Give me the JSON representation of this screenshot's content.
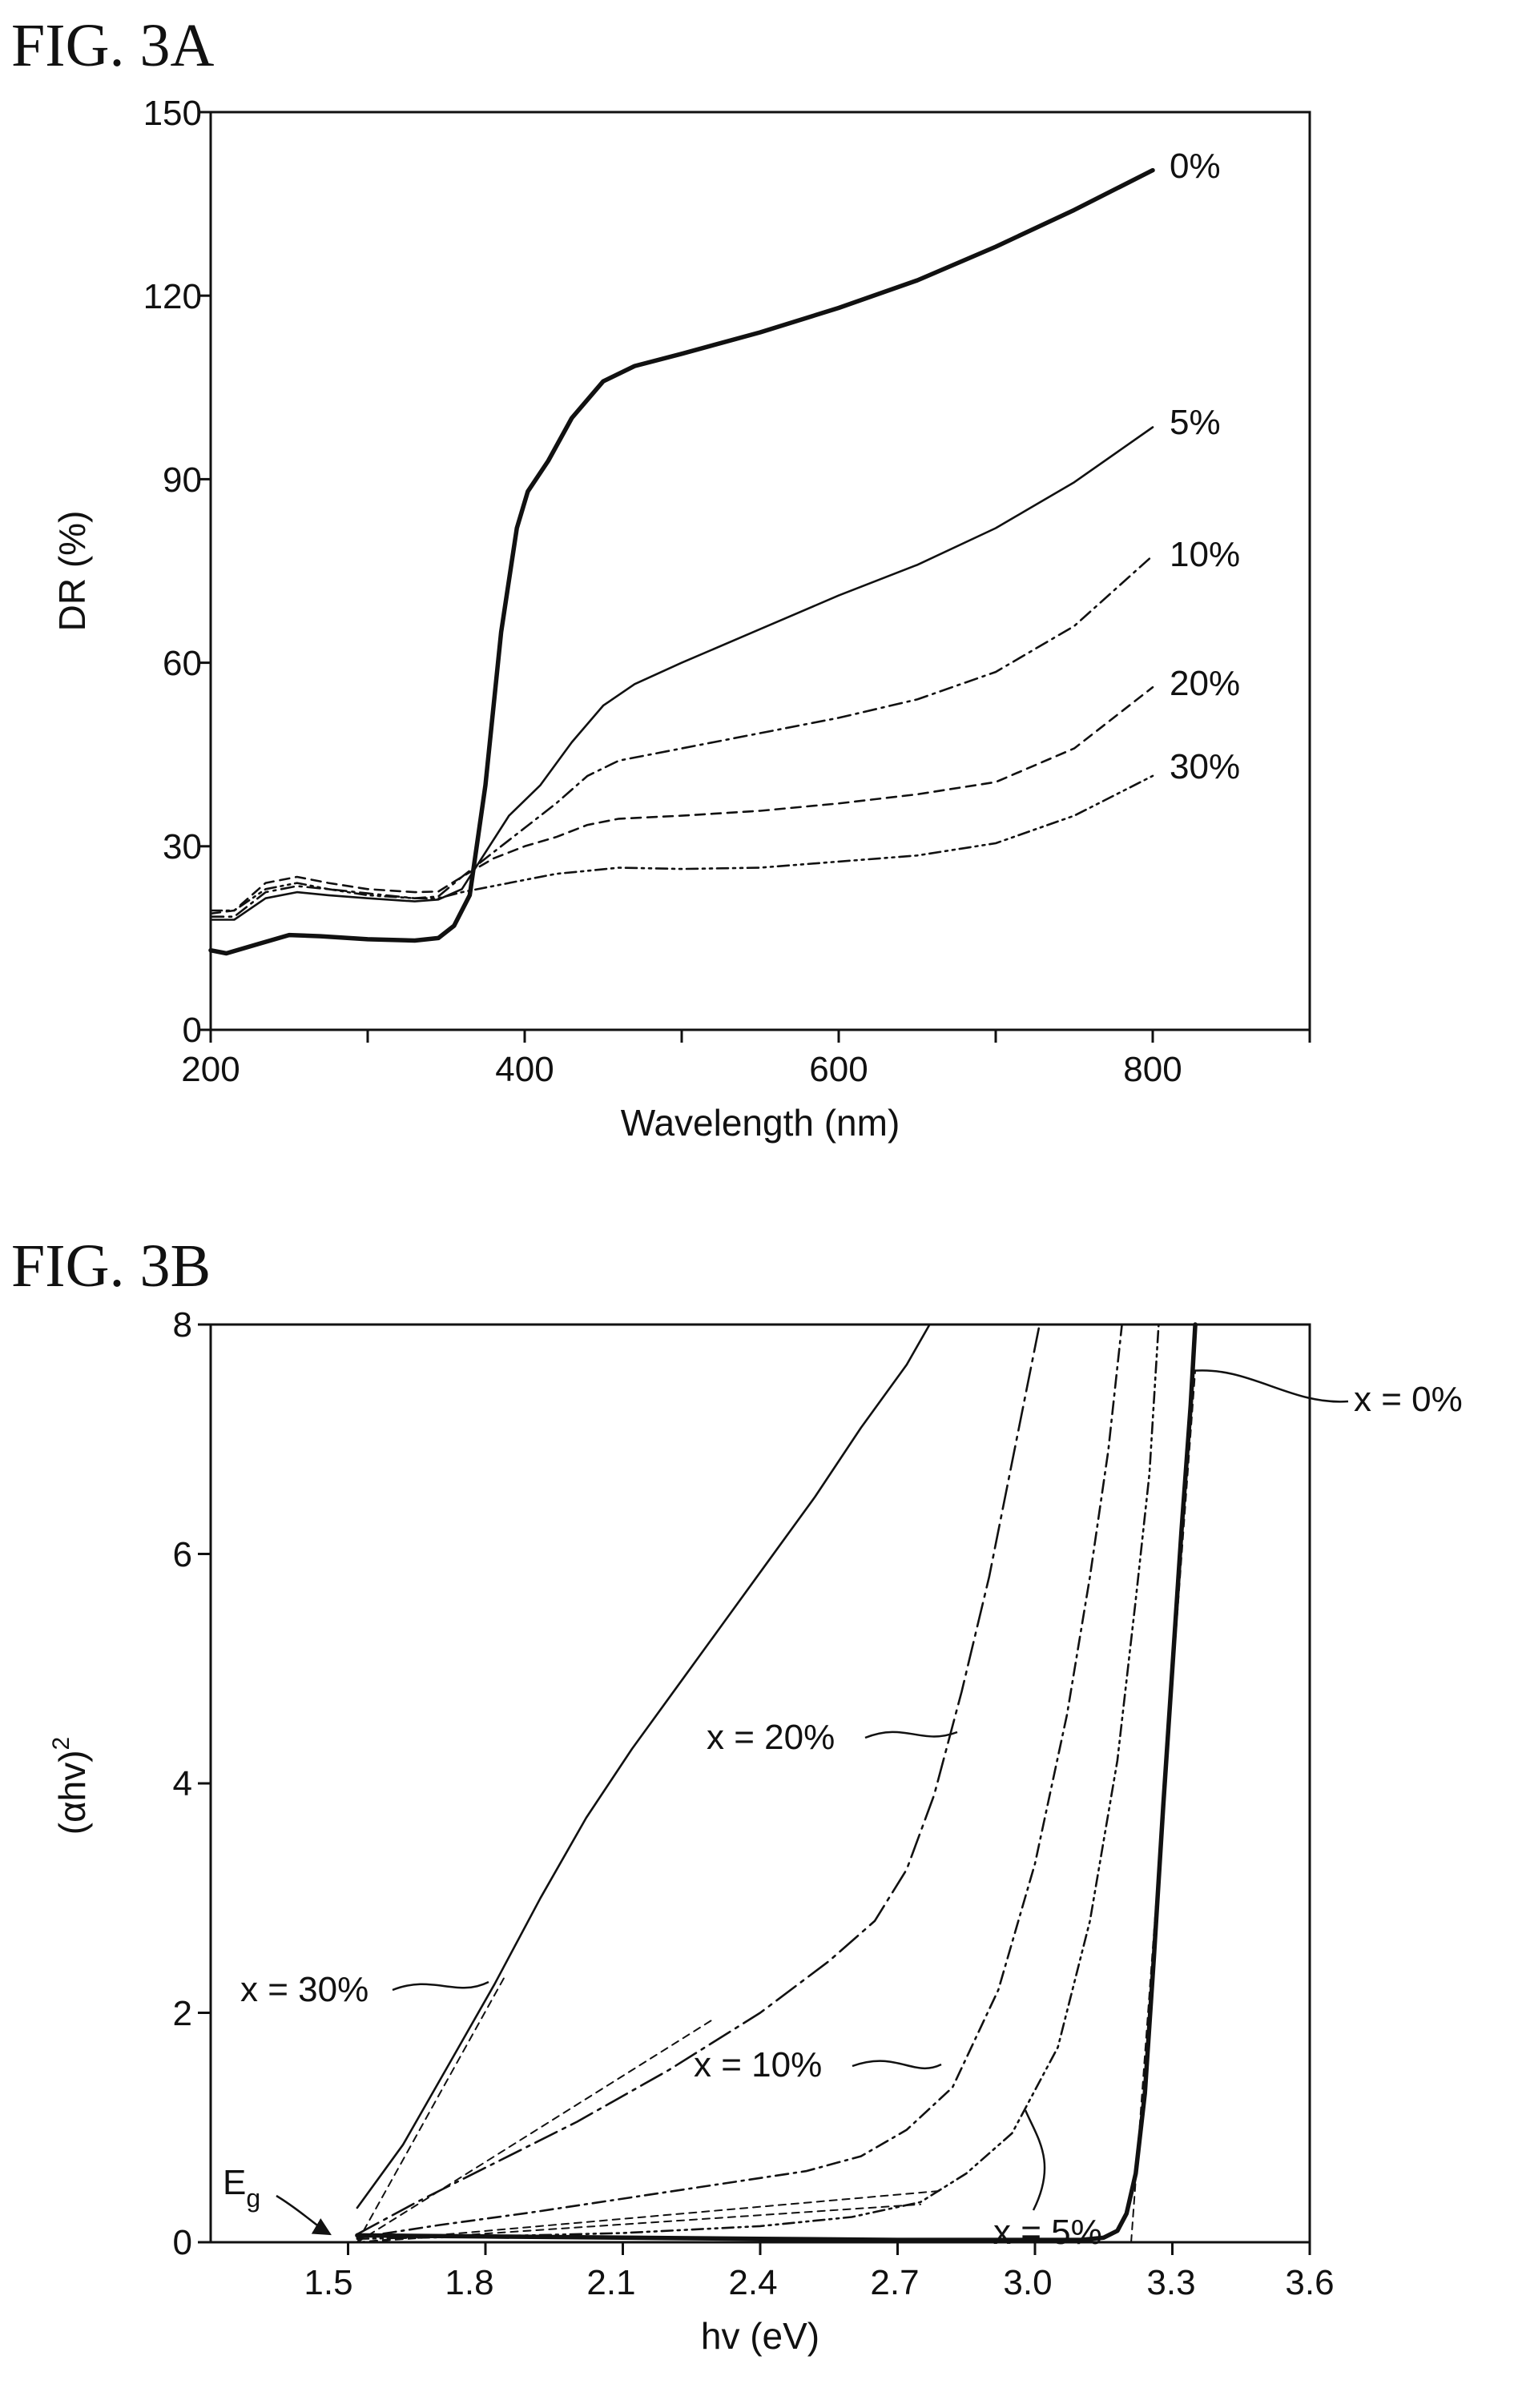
{
  "chart_data": [
    {
      "title": "FIG. 3A",
      "type": "line",
      "xlabel": "Wavelength (nm)",
      "ylabel": "DR (%)",
      "xlim": [
        200,
        900
      ],
      "ylim": [
        0,
        150
      ],
      "xticks": [
        200,
        400,
        600,
        800
      ],
      "yticks": [
        0,
        30,
        60,
        90,
        120,
        150
      ],
      "grid": false,
      "series": [
        {
          "name": "0%",
          "style": "solid-thick",
          "points": [
            [
              200,
              13
            ],
            [
              210,
              12.5
            ],
            [
              230,
              14
            ],
            [
              250,
              15.5
            ],
            [
              270,
              15.3
            ],
            [
              300,
              14.8
            ],
            [
              330,
              14.6
            ],
            [
              345,
              15
            ],
            [
              355,
              17
            ],
            [
              365,
              22
            ],
            [
              375,
              40
            ],
            [
              385,
              65
            ],
            [
              395,
              82
            ],
            [
              402,
              88
            ],
            [
              415,
              93
            ],
            [
              430,
              100
            ],
            [
              450,
              106
            ],
            [
              470,
              108.5
            ],
            [
              500,
              110.5
            ],
            [
              550,
              114
            ],
            [
              600,
              118
            ],
            [
              650,
              122.5
            ],
            [
              700,
              128
            ],
            [
              750,
              134
            ],
            [
              800,
              140.5
            ]
          ]
        },
        {
          "name": "5%",
          "style": "solid",
          "points": [
            [
              200,
              18
            ],
            [
              215,
              18
            ],
            [
              235,
              21.5
            ],
            [
              255,
              22.5
            ],
            [
              275,
              22
            ],
            [
              300,
              21.5
            ],
            [
              330,
              21
            ],
            [
              345,
              21.3
            ],
            [
              360,
              23
            ],
            [
              375,
              29
            ],
            [
              390,
              35
            ],
            [
              410,
              40
            ],
            [
              430,
              47
            ],
            [
              450,
              53
            ],
            [
              470,
              56.5
            ],
            [
              500,
              60
            ],
            [
              550,
              65.5
            ],
            [
              600,
              71
            ],
            [
              650,
              76
            ],
            [
              700,
              82
            ],
            [
              750,
              89.5
            ],
            [
              800,
              98.5
            ]
          ]
        },
        {
          "name": "10%",
          "style": "dash-dot",
          "points": [
            [
              200,
              18.5
            ],
            [
              215,
              18.5
            ],
            [
              235,
              22.5
            ],
            [
              255,
              23.5
            ],
            [
              275,
              23
            ],
            [
              300,
              22.3
            ],
            [
              330,
              21.5
            ],
            [
              345,
              21.8
            ],
            [
              360,
              25
            ],
            [
              380,
              29
            ],
            [
              400,
              33
            ],
            [
              420,
              37
            ],
            [
              440,
              41.5
            ],
            [
              460,
              44
            ],
            [
              500,
              46
            ],
            [
              550,
              48.5
            ],
            [
              600,
              51
            ],
            [
              650,
              54
            ],
            [
              700,
              58.5
            ],
            [
              750,
              66
            ],
            [
              800,
              77.5
            ]
          ]
        },
        {
          "name": "20%",
          "style": "dashed",
          "points": [
            [
              200,
              19
            ],
            [
              215,
              19.5
            ],
            [
              235,
              24
            ],
            [
              255,
              25
            ],
            [
              275,
              24
            ],
            [
              300,
              23
            ],
            [
              330,
              22.5
            ],
            [
              345,
              22.6
            ],
            [
              360,
              25
            ],
            [
              380,
              28
            ],
            [
              400,
              30
            ],
            [
              420,
              31.5
            ],
            [
              440,
              33.5
            ],
            [
              460,
              34.5
            ],
            [
              500,
              35
            ],
            [
              550,
              35.8
            ],
            [
              600,
              37
            ],
            [
              650,
              38.5
            ],
            [
              700,
              40.5
            ],
            [
              750,
              46
            ],
            [
              800,
              56
            ]
          ]
        },
        {
          "name": "30%",
          "style": "dash-dot-dot",
          "points": [
            [
              200,
              19.5
            ],
            [
              215,
              19.5
            ],
            [
              235,
              23
            ],
            [
              255,
              24
            ],
            [
              275,
              23
            ],
            [
              300,
              22
            ],
            [
              330,
              21.5
            ],
            [
              345,
              21.5
            ],
            [
              360,
              22.5
            ],
            [
              380,
              23.5
            ],
            [
              400,
              24.5
            ],
            [
              420,
              25.5
            ],
            [
              440,
              26
            ],
            [
              460,
              26.5
            ],
            [
              500,
              26.3
            ],
            [
              550,
              26.5
            ],
            [
              600,
              27.5
            ],
            [
              650,
              28.5
            ],
            [
              700,
              30.5
            ],
            [
              750,
              35
            ],
            [
              800,
              41.5
            ]
          ]
        }
      ],
      "labels": [
        "0%",
        "5%",
        "10%",
        "20%",
        "30%"
      ]
    },
    {
      "title": "FIG. 3B",
      "type": "line",
      "xlabel": "hv (eV)",
      "ylabel_main": "(αhv)",
      "ylabel_sup": "2",
      "xlim": [
        1.2,
        3.6
      ],
      "ylim": [
        0,
        8
      ],
      "xticks": [
        "1.5",
        "1.8",
        "2.1",
        "2.4",
        "2.7",
        "3.0",
        "3.3",
        "3.6"
      ],
      "yticks": [
        0,
        2,
        4,
        6,
        8
      ],
      "grid": false,
      "series": [
        {
          "name": "x = 0%",
          "style": "solid-thick",
          "points": [
            [
              1.52,
              0.06
            ],
            [
              1.8,
              0.05
            ],
            [
              2.1,
              0.04
            ],
            [
              2.4,
              0.03
            ],
            [
              2.7,
              0.02
            ],
            [
              3.0,
              0.02
            ],
            [
              3.1,
              0.02
            ],
            [
              3.15,
              0.04
            ],
            [
              3.18,
              0.1
            ],
            [
              3.2,
              0.25
            ],
            [
              3.22,
              0.6
            ],
            [
              3.24,
              1.3
            ],
            [
              3.26,
              2.5
            ],
            [
              3.28,
              3.8
            ],
            [
              3.3,
              5.0
            ],
            [
              3.32,
              6.2
            ],
            [
              3.34,
              7.3
            ],
            [
              3.35,
              8.0
            ]
          ]
        },
        {
          "name": "x = 5%",
          "style": "dash-dot-dot",
          "points": [
            [
              1.52,
              0.03
            ],
            [
              1.8,
              0.05
            ],
            [
              2.1,
              0.08
            ],
            [
              2.4,
              0.14
            ],
            [
              2.6,
              0.22
            ],
            [
              2.75,
              0.35
            ],
            [
              2.85,
              0.6
            ],
            [
              2.95,
              0.95
            ],
            [
              3.05,
              1.7
            ],
            [
              3.12,
              2.8
            ],
            [
              3.18,
              4.2
            ],
            [
              3.22,
              5.6
            ],
            [
              3.25,
              6.7
            ],
            [
              3.27,
              8.0
            ]
          ]
        },
        {
          "name": "x = 10%",
          "style": "dash-dot",
          "points": [
            [
              1.52,
              0.04
            ],
            [
              1.7,
              0.15
            ],
            [
              1.9,
              0.26
            ],
            [
              2.1,
              0.38
            ],
            [
              2.3,
              0.5
            ],
            [
              2.5,
              0.62
            ],
            [
              2.62,
              0.75
            ],
            [
              2.72,
              0.98
            ],
            [
              2.82,
              1.35
            ],
            [
              2.92,
              2.2
            ],
            [
              3.0,
              3.3
            ],
            [
              3.07,
              4.6
            ],
            [
              3.12,
              5.8
            ],
            [
              3.16,
              6.9
            ],
            [
              3.19,
              8.0
            ]
          ]
        },
        {
          "name": "x = 20%",
          "style": "long-dash-dot",
          "points": [
            [
              1.52,
              0.07
            ],
            [
              1.65,
              0.35
            ],
            [
              1.8,
              0.65
            ],
            [
              2.0,
              1.05
            ],
            [
              2.2,
              1.5
            ],
            [
              2.4,
              2.0
            ],
            [
              2.55,
              2.45
            ],
            [
              2.65,
              2.8
            ],
            [
              2.72,
              3.25
            ],
            [
              2.78,
              3.9
            ],
            [
              2.84,
              4.8
            ],
            [
              2.9,
              5.8
            ],
            [
              2.95,
              6.8
            ],
            [
              2.99,
              7.6
            ],
            [
              3.01,
              8.0
            ]
          ]
        },
        {
          "name": "x = 30%",
          "style": "solid",
          "points": [
            [
              1.52,
              0.3
            ],
            [
              1.62,
              0.85
            ],
            [
              1.72,
              1.55
            ],
            [
              1.82,
              2.25
            ],
            [
              1.92,
              3.0
            ],
            [
              2.02,
              3.7
            ],
            [
              2.12,
              4.3
            ],
            [
              2.22,
              4.85
            ],
            [
              2.32,
              5.4
            ],
            [
              2.42,
              5.95
            ],
            [
              2.52,
              6.5
            ],
            [
              2.62,
              7.1
            ],
            [
              2.72,
              7.65
            ],
            [
              2.77,
              8.0
            ]
          ]
        }
      ],
      "tangents": [
        [
          [
            1.52,
            0.0
          ],
          [
            1.84,
            2.3
          ]
        ],
        [
          [
            1.52,
            0.0
          ],
          [
            2.3,
            1.95
          ]
        ],
        [
          [
            1.52,
            0.0
          ],
          [
            2.8,
            0.45
          ]
        ],
        [
          [
            1.52,
            0.0
          ],
          [
            2.75,
            0.33
          ]
        ],
        [
          [
            3.21,
            0.0
          ],
          [
            3.35,
            7.6
          ]
        ]
      ],
      "labels": [
        "x = 0%",
        "x = 5%",
        "x = 10%",
        "x = 20%",
        "x = 30%"
      ],
      "annotation": {
        "main": "E",
        "sub": "g"
      }
    }
  ]
}
